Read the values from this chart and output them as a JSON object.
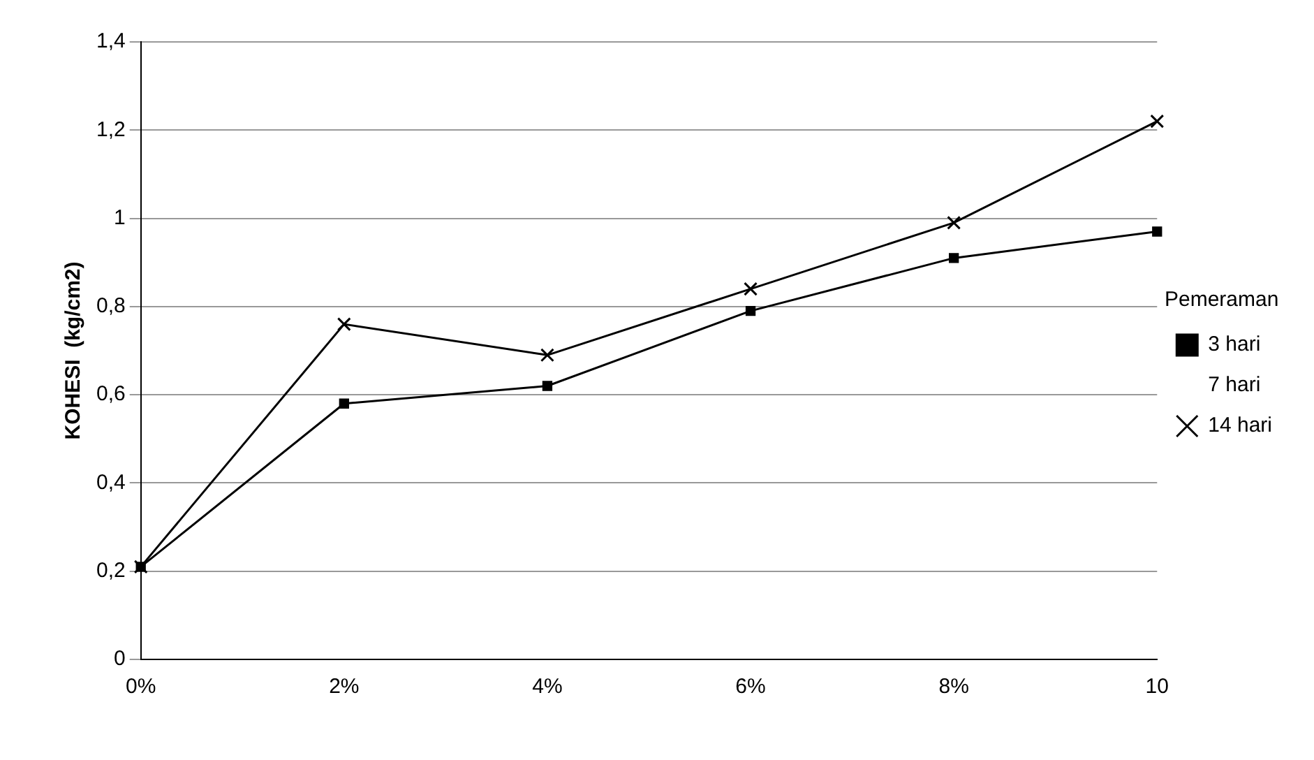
{
  "chart_data": {
    "type": "line",
    "ylabel": "KOHESI  (kg/cm2)",
    "legend_title": "Pemeraman",
    "legend": "right",
    "grid": "y",
    "categories": [
      "0%",
      "2%",
      "4%",
      "6%",
      "8%",
      "10"
    ],
    "ylim": [
      0,
      1.4
    ],
    "yticks": [
      0,
      {
        "value": 0.2,
        "label": "0,2"
      },
      {
        "value": 0.4,
        "label": "0,4"
      },
      {
        "value": 0.6,
        "label": "0,6"
      },
      {
        "value": 0.8,
        "label": "0,8"
      },
      1,
      {
        "value": 1.2,
        "label": "1,2"
      },
      {
        "value": 1.4,
        "label": "1,4"
      }
    ],
    "series": [
      {
        "name": "3 hari",
        "color": "#000000",
        "marker": "square",
        "values": [
          0.21,
          0.58,
          0.62,
          0.79,
          0.91,
          0.97
        ]
      },
      {
        "name": "7 hari",
        "marker": "none",
        "values": [
          null,
          null,
          null,
          null,
          null,
          null
        ]
      },
      {
        "name": "14 hari",
        "color": "#000000",
        "marker": "cross",
        "values": [
          0.21,
          0.76,
          0.69,
          0.84,
          0.99,
          1.22
        ]
      }
    ]
  }
}
